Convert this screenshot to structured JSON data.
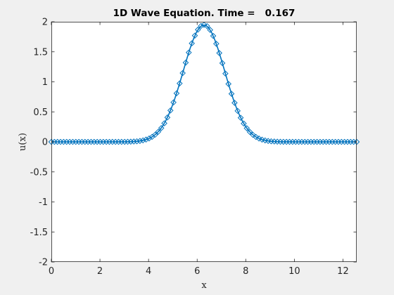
{
  "chart_data": {
    "type": "line",
    "title": "1D Wave Equation. Time =   0.167",
    "xlabel": "x",
    "ylabel": "u(x)",
    "xlim": [
      0,
      12.566
    ],
    "ylim": [
      -2,
      2
    ],
    "xticks": [
      0,
      2,
      4,
      6,
      8,
      10,
      12
    ],
    "xtick_labels": [
      "0",
      "2",
      "4",
      "6",
      "8",
      "10",
      "12"
    ],
    "yticks": [
      2,
      1.5,
      1,
      0.5,
      0,
      -0.5,
      -1,
      -1.5,
      -2
    ],
    "ytick_labels": [
      "2",
      "1.5",
      "1",
      "0.5",
      "0",
      "-0.5",
      "-1",
      "-1.5",
      "-2"
    ],
    "grid": false,
    "box": true,
    "series": [
      {
        "style": "line",
        "color": "#0072BD",
        "x_range": [
          0,
          12.566
        ],
        "n_points": 100,
        "function": "gaussian",
        "amplitude": 1.95,
        "center": 6.28,
        "sigma": 0.85
      },
      {
        "style": "diamond-markers",
        "color": "#0072BD",
        "x_range": [
          0,
          12.566
        ],
        "n_points": 101,
        "function": "gaussian",
        "amplitude": 1.95,
        "center": 6.28,
        "sigma": 0.85
      }
    ]
  },
  "colors": {
    "figure_background": "#f0f0f0",
    "axes_background": "#ffffff",
    "axes_color": "#262626",
    "line_color": "#0072BD"
  }
}
